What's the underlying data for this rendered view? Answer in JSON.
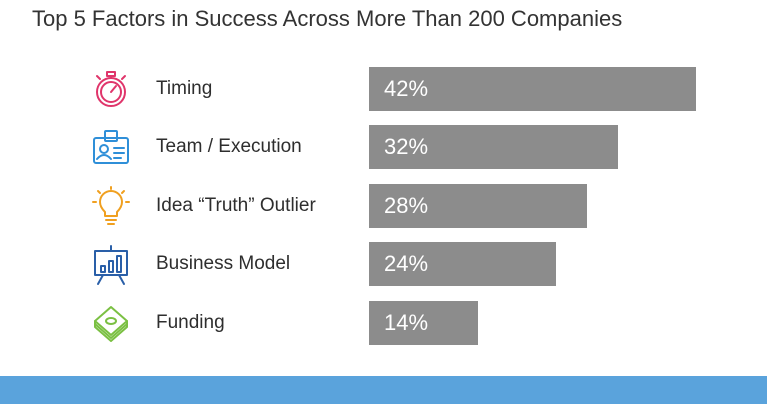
{
  "chart_data": {
    "type": "bar",
    "orientation": "horizontal",
    "title": "Top 5 Factors in Success Across More Than 200 Companies",
    "categories": [
      "Timing",
      "Team / Execution",
      "Idea “Truth” Outlier",
      "Business Model",
      "Funding"
    ],
    "values": [
      42,
      32,
      28,
      24,
      14
    ],
    "value_labels": [
      "42%",
      "32%",
      "28%",
      "24%",
      "14%"
    ],
    "icons": [
      "stopwatch-icon",
      "id-badge-icon",
      "lightbulb-icon",
      "presentation-chart-icon",
      "money-stack-icon"
    ],
    "icon_colors": [
      "#e0356b",
      "#2f8fd8",
      "#f0a020",
      "#2a5fa8",
      "#7bc043"
    ],
    "xlim": [
      0,
      42
    ],
    "bar_color": "#8c8c8c",
    "grid": false,
    "legend": "none"
  },
  "colors": {
    "footer": "#5aa3dc"
  }
}
